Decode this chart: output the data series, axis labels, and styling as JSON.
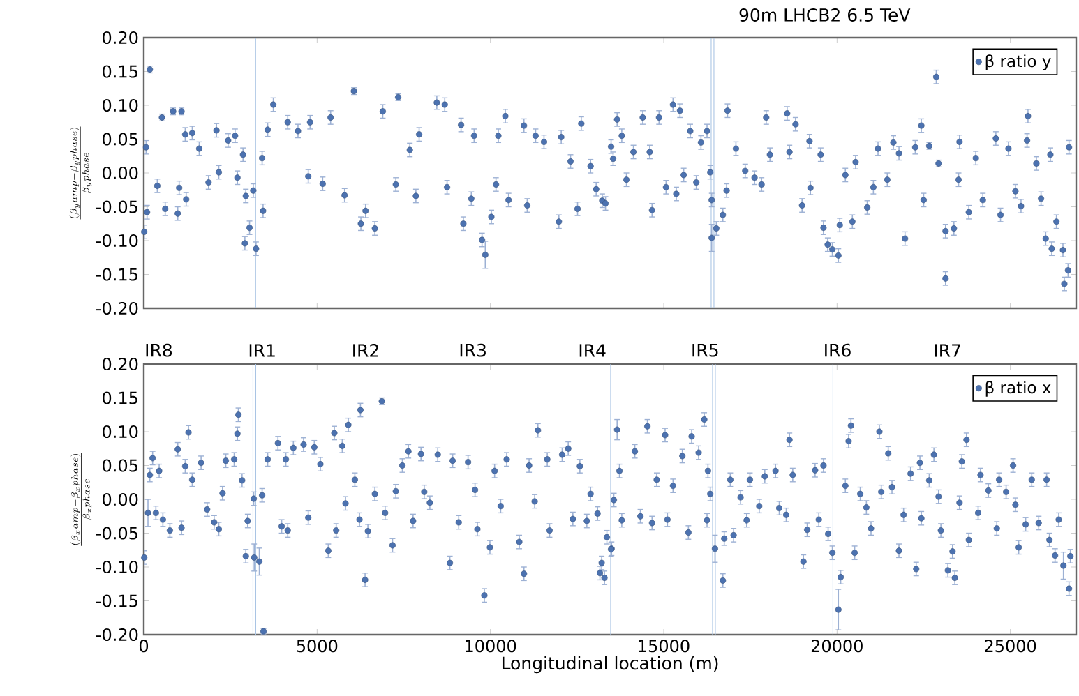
{
  "chart_data": [
    {
      "type": "scatter",
      "title": "90m LHCB2 6.5 TeV",
      "ylabel": "\\frac{(\\beta_y amp-\\beta_y phase)}{\\beta_y phase}",
      "xlim": [
        0,
        26900
      ],
      "ylim": [
        -0.2,
        0.2
      ],
      "xticks": [
        0,
        5000,
        10000,
        15000,
        20000,
        25000
      ],
      "yticks": [
        {
          "value": -0.2,
          "label": "-0.20"
        },
        {
          "value": -0.15,
          "label": "-0.15"
        },
        {
          "value": -0.1,
          "label": "-0.10"
        },
        {
          "value": -0.05,
          "label": "-0.05"
        },
        {
          "value": 0,
          "label": "0.00"
        },
        {
          "value": 0.05,
          "label": "0.05"
        },
        {
          "value": 0.1,
          "label": "0.10"
        },
        {
          "value": 0.15,
          "label": "0.15"
        },
        {
          "value": 0.2,
          "label": "0.20"
        }
      ],
      "tick_labels": "y",
      "legend": "top right",
      "ref_lines": [
        {
          "axis": "x",
          "value": 3226,
          "color": "#a9c4e4"
        },
        {
          "axis": "x",
          "value": 16370,
          "color": "#a9c4e4"
        },
        {
          "axis": "x",
          "value": 16450,
          "color": "#a9c4e4"
        }
      ],
      "series": [
        {
          "name": "β ratio y",
          "color": "#4c72b0",
          "x": [
            175,
            67,
            94,
            13,
            524,
            390,
            618,
            847,
            1089,
            981,
            1021,
            1223,
            1196,
            1398,
            1600,
            1868,
            2097,
            2164,
            2433,
            2634,
            2702,
            2863,
            2944,
            3159,
            2917,
            3051,
            3239,
            3441,
            3575,
            3737,
            3414,
            4153,
            4449,
            4798,
            4745,
            5390,
            5161,
            6062,
            5793,
            6263,
            6398,
            6667,
            6895,
            7339,
            7272,
            7675,
            7944,
            7850,
            8454,
            8683,
            8750,
            9153,
            9220,
            9530,
            9449,
            9758,
            9852,
            10027,
            10229,
            10430,
            10161,
            10524,
            11062,
            10968,
            11304,
            11546,
            11976,
            12043,
            12312,
            12621,
            12514,
            12890,
            13051,
            13226,
            13481,
            13320,
            13540,
            13655,
            13790,
            13924,
            14126,
            14395,
            14663,
            14596,
            14865,
            15067,
            15268,
            15470,
            15362,
            15577,
            15765,
            15940,
            16075,
            16249,
            16343,
            16384,
            16384,
            16518,
            16706,
            16841,
            16814,
            17083,
            17351,
            17620,
            17822,
            17956,
            18064,
            18561,
            18803,
            18628,
            18991,
            19206,
            19233,
            19528,
            19609,
            19730,
            19864,
            20039,
            20079,
            20240,
            20442,
            20536,
            20871,
            21048,
            21182,
            21450,
            21625,
            21961,
            21787,
            22257,
            22432,
            22499,
            22660,
            22862,
            22929,
            23130,
            23130,
            23372,
            23534,
            23507,
            23802,
            24004,
            24206,
            24582,
            24716,
            24945,
            25146,
            25308,
            25509,
            25482,
            25751,
            25885,
            26020,
            26194,
            26329,
            26517,
            26557,
            26665,
            26692,
            26154
          ],
          "values": [
            0.153,
            0.038,
            -0.058,
            -0.087,
            0.082,
            -0.019,
            -0.053,
            0.091,
            0.091,
            -0.06,
            -0.022,
            -0.039,
            0.057,
            0.059,
            0.036,
            -0.014,
            0.063,
            0.001,
            0.048,
            0.055,
            -0.007,
            0.027,
            -0.034,
            -0.026,
            -0.104,
            -0.081,
            -0.112,
            -0.056,
            0.064,
            0.101,
            0.022,
            0.075,
            0.062,
            0.075,
            -0.005,
            0.082,
            -0.016,
            0.121,
            -0.033,
            -0.075,
            -0.056,
            -0.082,
            0.091,
            0.112,
            -0.017,
            0.034,
            0.057,
            -0.034,
            0.104,
            0.101,
            -0.021,
            0.071,
            -0.075,
            0.055,
            -0.038,
            -0.099,
            -0.121,
            -0.065,
            0.055,
            0.084,
            -0.017,
            -0.04,
            -0.048,
            0.07,
            0.055,
            0.046,
            -0.072,
            0.053,
            0.017,
            0.073,
            -0.053,
            0.01,
            -0.024,
            -0.041,
            0.039,
            -0.045,
            0.021,
            0.079,
            0.055,
            -0.01,
            0.031,
            0.082,
            -0.055,
            0.031,
            0.082,
            -0.021,
            0.101,
            0.092,
            -0.031,
            -0.003,
            0.062,
            -0.014,
            0.045,
            0.062,
            0.001,
            -0.04,
            -0.096,
            -0.082,
            -0.062,
            0.092,
            -0.026,
            0.036,
            0.003,
            -0.007,
            -0.017,
            0.082,
            0.027,
            0.088,
            0.072,
            0.031,
            -0.048,
            0.047,
            -0.022,
            0.027,
            -0.081,
            -0.106,
            -0.113,
            -0.122,
            -0.077,
            -0.003,
            -0.072,
            0.016,
            -0.051,
            -0.021,
            0.036,
            -0.01,
            0.045,
            -0.097,
            0.029,
            0.038,
            0.07,
            -0.04,
            0.04,
            0.142,
            0.014,
            -0.156,
            -0.086,
            -0.082,
            0.046,
            -0.01,
            -0.058,
            0.022,
            -0.04,
            0.051,
            -0.062,
            0.036,
            -0.027,
            -0.049,
            0.084,
            0.048,
            0.014,
            -0.038,
            -0.097,
            -0.112,
            -0.072,
            -0.114,
            -0.164,
            -0.144,
            0.038,
            0.027
          ],
          "errors": [
            0.005,
            0.01,
            0.01,
            0.01,
            0.005,
            0.01,
            0.01,
            0.005,
            0.005,
            0.01,
            0.01,
            0.01,
            0.01,
            0.01,
            0.01,
            0.01,
            0.01,
            0.01,
            0.01,
            0.01,
            0.01,
            0.01,
            0.01,
            0.01,
            0.01,
            0.01,
            0.01,
            0.01,
            0.01,
            0.01,
            0.01,
            0.01,
            0.01,
            0.01,
            0.01,
            0.01,
            0.01,
            0.005,
            0.01,
            0.01,
            0.01,
            0.01,
            0.01,
            0.005,
            0.01,
            0.01,
            0.01,
            0.01,
            0.01,
            0.01,
            0.01,
            0.01,
            0.01,
            0.01,
            0.01,
            0.01,
            0.02,
            0.01,
            0.01,
            0.01,
            0.01,
            0.01,
            0.01,
            0.01,
            0.01,
            0.01,
            0.01,
            0.01,
            0.01,
            0.01,
            0.01,
            0.01,
            0.01,
            0.01,
            0.01,
            0.01,
            0.01,
            0.01,
            0.01,
            0.01,
            0.01,
            0.01,
            0.01,
            0.01,
            0.01,
            0.01,
            0.01,
            0.01,
            0.01,
            0.01,
            0.01,
            0.01,
            0.01,
            0.01,
            0.01,
            0.01,
            0.02,
            0.01,
            0.01,
            0.01,
            0.01,
            0.01,
            0.01,
            0.01,
            0.01,
            0.01,
            0.01,
            0.01,
            0.01,
            0.01,
            0.01,
            0.01,
            0.01,
            0.01,
            0.01,
            0.01,
            0.01,
            0.01,
            0.01,
            0.01,
            0.01,
            0.01,
            0.01,
            0.01,
            0.01,
            0.01,
            0.01,
            0.01,
            0.01,
            0.01,
            0.01,
            0.01,
            0.005,
            0.01,
            0.005,
            0.01,
            0.01,
            0.01,
            0.01,
            0.01,
            0.01,
            0.01,
            0.01,
            0.01,
            0.01,
            0.01,
            0.01,
            0.01,
            0.01,
            0.01,
            0.01,
            0.01,
            0.01,
            0.01,
            0.01,
            0.01,
            0.01,
            0.01,
            0.01,
            0.01
          ]
        }
      ]
    },
    {
      "type": "scatter",
      "xlabel": "Longitudinal location (m)",
      "ylabel": "\\frac{(\\beta_x amp-\\beta_x phase)}{\\beta_x phase}",
      "xlim": [
        0,
        26900
      ],
      "ylim": [
        -0.2,
        0.2
      ],
      "xticks": [
        0,
        5000,
        10000,
        15000,
        20000,
        25000
      ],
      "yticks": [
        {
          "value": -0.2,
          "label": "-0.20"
        },
        {
          "value": -0.15,
          "label": "-0.15"
        },
        {
          "value": -0.1,
          "label": "-0.10"
        },
        {
          "value": -0.05,
          "label": "-0.05"
        },
        {
          "value": 0,
          "label": "0.00"
        },
        {
          "value": 0.05,
          "label": "0.05"
        },
        {
          "value": 0.1,
          "label": "0.10"
        },
        {
          "value": 0.15,
          "label": "0.15"
        },
        {
          "value": 0.2,
          "label": "0.20"
        }
      ],
      "annotations": [
        "IR8",
        "IR1",
        "IR2",
        "IR3",
        "IR4",
        "IR5",
        "IR6",
        "IR7"
      ],
      "legend": "top right",
      "ref_lines": [
        {
          "axis": "x",
          "value": 3150,
          "color": "#a9c4e4"
        },
        {
          "axis": "x",
          "value": 3230,
          "color": "#a9c4e4"
        },
        {
          "axis": "x",
          "value": 13470,
          "color": "#a9c4e4"
        },
        {
          "axis": "x",
          "value": 16410,
          "color": "#a9c4e4"
        },
        {
          "axis": "x",
          "value": 16490,
          "color": "#a9c4e4"
        },
        {
          "axis": "x",
          "value": 19880,
          "color": "#a9c4e4"
        }
      ],
      "series": [
        {
          "name": "β ratio x",
          "color": "#4c72b0",
          "x": [
            13,
            121,
            175,
            255,
            444,
            349,
            551,
            753,
            981,
            1089,
            1196,
            1290,
            1398,
            1653,
            1828,
            2030,
            2164,
            2272,
            2366,
            2608,
            2702,
            2729,
            2836,
            2944,
            2997,
            3172,
            3185,
            3333,
            3454,
            3414,
            3575,
            3871,
            3978,
            4153,
            4099,
            4315,
            4610,
            4745,
            4919,
            5094,
            5323,
            5497,
            5551,
            5726,
            5901,
            5820,
            6089,
            6250,
            6223,
            6384,
            6465,
            6667,
            6868,
            6962,
            7177,
            7272,
            7460,
            7769,
            7634,
            7997,
            8091,
            8253,
            8481,
            8831,
            8911,
            9086,
            9355,
            9556,
            9624,
            9825,
            9986,
            10121,
            10296,
            10470,
            10833,
            10968,
            11116,
            11371,
            11277,
            11640,
            11707,
            12070,
            12245,
            12379,
            12581,
            12782,
            12890,
            13091,
            13159,
            13210,
            13360,
            13495,
            13290,
            13481,
            13561,
            13655,
            13723,
            13790,
            14166,
            14327,
            14529,
            14663,
            14798,
            15040,
            15107,
            15268,
            15537,
            15712,
            15806,
            16007,
            16169,
            16276,
            16343,
            16249,
            16478,
            16706,
            16746,
            16921,
            17016,
            17217,
            17392,
            17486,
            17755,
            17916,
            18225,
            18333,
            18534,
            18628,
            18722,
            19031,
            19139,
            19367,
            19474,
            19609,
            19743,
            19864,
            20039,
            20106,
            20240,
            20334,
            20402,
            20509,
            20670,
            20846,
            20980,
            21222,
            21276,
            21477,
            21585,
            21786,
            21920,
            22122,
            22284,
            22391,
            22432,
            22660,
            22795,
            22929,
            22996,
            23198,
            23332,
            23399,
            23534,
            23601,
            23735,
            23802,
            24071,
            24139,
            24367,
            24609,
            24676,
            24878,
            25079,
            25146,
            25241,
            25442,
            25617,
            25818,
            26047,
            26128,
            26289,
            26396,
            26531,
            26692,
            26732
          ],
          "values": [
            -0.086,
            -0.02,
            0.036,
            0.061,
            0.042,
            -0.02,
            -0.03,
            -0.046,
            0.074,
            -0.042,
            0.049,
            0.099,
            0.029,
            0.054,
            -0.015,
            -0.034,
            -0.044,
            0.009,
            0.057,
            0.059,
            0.097,
            0.125,
            0.028,
            -0.084,
            -0.032,
            0.001,
            -0.086,
            -0.092,
            -0.195,
            0.006,
            0.059,
            0.083,
            -0.04,
            -0.046,
            0.059,
            0.076,
            0.081,
            -0.027,
            0.077,
            0.052,
            -0.076,
            0.098,
            -0.046,
            0.079,
            0.11,
            -0.006,
            0.029,
            0.132,
            -0.03,
            -0.119,
            -0.047,
            0.008,
            0.145,
            -0.02,
            -0.068,
            0.012,
            0.05,
            -0.032,
            0.071,
            0.067,
            0.011,
            -0.005,
            0.066,
            -0.094,
            0.057,
            -0.034,
            0.055,
            0.014,
            -0.044,
            -0.142,
            -0.071,
            0.042,
            -0.01,
            0.059,
            -0.063,
            -0.11,
            0.05,
            0.102,
            -0.003,
            0.059,
            -0.046,
            0.066,
            0.075,
            -0.029,
            0.049,
            -0.032,
            0.008,
            -0.021,
            -0.109,
            -0.094,
            -0.056,
            -0.073,
            -0.116,
            -0.074,
            -0.001,
            0.103,
            0.042,
            -0.031,
            0.071,
            -0.025,
            0.108,
            -0.035,
            0.029,
            0.095,
            -0.03,
            0.02,
            0.064,
            -0.049,
            0.093,
            0.069,
            0.118,
            0.042,
            0.008,
            -0.031,
            -0.073,
            -0.12,
            -0.058,
            0.029,
            -0.053,
            0.003,
            -0.031,
            0.029,
            -0.01,
            0.034,
            0.042,
            -0.013,
            -0.023,
            0.088,
            0.036,
            -0.092,
            -0.045,
            0.043,
            -0.03,
            0.05,
            -0.051,
            -0.079,
            -0.163,
            -0.115,
            0.02,
            0.086,
            0.109,
            -0.079,
            0.008,
            -0.012,
            -0.043,
            0.1,
            0.011,
            0.068,
            0.018,
            -0.076,
            -0.023,
            0.038,
            -0.103,
            0.054,
            -0.028,
            0.028,
            0.066,
            0.004,
            -0.046,
            -0.105,
            -0.077,
            -0.116,
            -0.005,
            0.056,
            0.088,
            -0.06,
            -0.02,
            0.036,
            0.013,
            -0.043,
            0.029,
            0.011,
            0.05,
            -0.008,
            -0.071,
            -0.037,
            0.029,
            -0.035,
            0.029,
            -0.06,
            -0.083,
            -0.03,
            -0.098,
            -0.132,
            -0.084
          ],
          "errors": [
            0.01,
            0.02,
            0.01,
            0.01,
            0.01,
            0.01,
            0.01,
            0.01,
            0.01,
            0.01,
            0.01,
            0.01,
            0.01,
            0.01,
            0.01,
            0.01,
            0.01,
            0.01,
            0.01,
            0.01,
            0.01,
            0.01,
            0.01,
            0.01,
            0.01,
            0.01,
            0.02,
            0.02,
            0.004,
            0.01,
            0.01,
            0.01,
            0.01,
            0.01,
            0.01,
            0.01,
            0.01,
            0.01,
            0.01,
            0.01,
            0.01,
            0.01,
            0.01,
            0.01,
            0.01,
            0.01,
            0.01,
            0.01,
            0.01,
            0.01,
            0.01,
            0.01,
            0.005,
            0.01,
            0.01,
            0.01,
            0.01,
            0.01,
            0.01,
            0.01,
            0.01,
            0.01,
            0.01,
            0.01,
            0.01,
            0.01,
            0.01,
            0.01,
            0.01,
            0.01,
            0.01,
            0.01,
            0.01,
            0.01,
            0.01,
            0.01,
            0.01,
            0.01,
            0.01,
            0.01,
            0.01,
            0.01,
            0.01,
            0.01,
            0.01,
            0.01,
            0.01,
            0.01,
            0.01,
            0.01,
            0.01,
            0.01,
            0.01,
            0.01,
            0.01,
            0.015,
            0.01,
            0.01,
            0.01,
            0.01,
            0.01,
            0.01,
            0.01,
            0.01,
            0.01,
            0.01,
            0.01,
            0.01,
            0.01,
            0.01,
            0.01,
            0.01,
            0.01,
            0.01,
            0.02,
            0.01,
            0.01,
            0.01,
            0.01,
            0.01,
            0.01,
            0.01,
            0.01,
            0.01,
            0.01,
            0.01,
            0.01,
            0.01,
            0.01,
            0.01,
            0.01,
            0.01,
            0.01,
            0.01,
            0.01,
            0.01,
            0.03,
            0.01,
            0.01,
            0.01,
            0.01,
            0.01,
            0.01,
            0.01,
            0.01,
            0.01,
            0.01,
            0.01,
            0.01,
            0.01,
            0.01,
            0.01,
            0.01,
            0.01,
            0.01,
            0.01,
            0.01,
            0.01,
            0.01,
            0.01,
            0.01,
            0.01,
            0.01,
            0.01,
            0.01,
            0.01,
            0.01,
            0.01,
            0.01,
            0.01,
            0.01,
            0.01,
            0.01,
            0.01,
            0.01,
            0.01,
            0.01,
            0.01,
            0.01,
            0.01,
            0.01,
            0.01,
            0.02,
            0.01,
            0.01
          ]
        }
      ]
    }
  ]
}
